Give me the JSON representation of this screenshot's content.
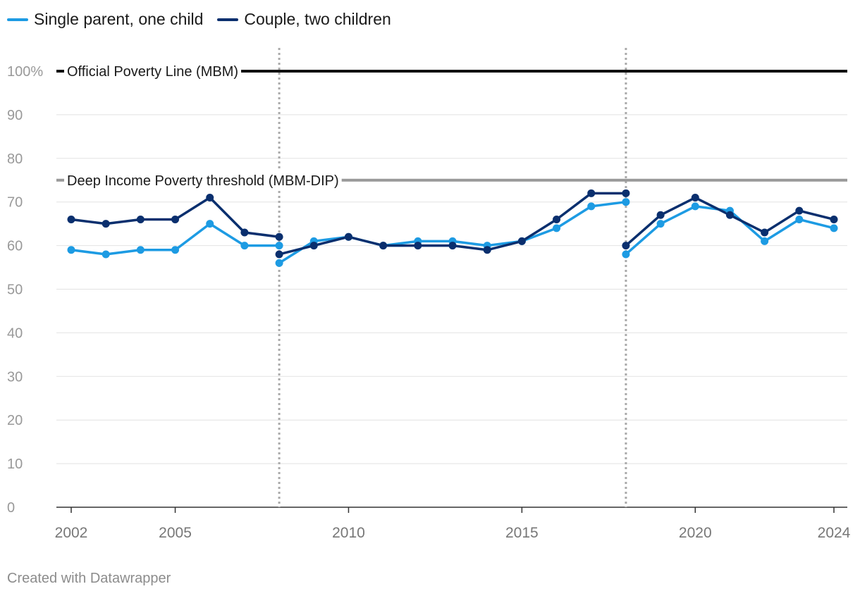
{
  "chart_data": {
    "type": "line",
    "x": [
      2002,
      2003,
      2004,
      2005,
      2006,
      2007,
      2008,
      2009,
      2010,
      2011,
      2012,
      2013,
      2014,
      2015,
      2016,
      2017,
      2018,
      2019,
      2020,
      2021,
      2022,
      2023,
      2024
    ],
    "series": [
      {
        "name": "Single parent, one child",
        "color": "#1d9be3",
        "segments": [
          {
            "x": [
              2002,
              2003,
              2004,
              2005,
              2006,
              2007,
              2008
            ],
            "y": [
              59,
              58,
              59,
              59,
              65,
              60,
              60
            ]
          },
          {
            "x": [
              2008,
              2009,
              2010,
              2011,
              2012,
              2013,
              2014,
              2015,
              2016,
              2017,
              2018
            ],
            "y": [
              56,
              61,
              62,
              60,
              61,
              61,
              60,
              61,
              64,
              69,
              70
            ]
          },
          {
            "x": [
              2018,
              2019,
              2020,
              2021,
              2022,
              2023,
              2024
            ],
            "y": [
              58,
              65,
              69,
              68,
              61,
              66,
              64
            ]
          }
        ]
      },
      {
        "name": "Couple, two children",
        "color": "#0a2f6e",
        "segments": [
          {
            "x": [
              2002,
              2003,
              2004,
              2005,
              2006,
              2007,
              2008
            ],
            "y": [
              66,
              65,
              66,
              66,
              71,
              63,
              62
            ]
          },
          {
            "x": [
              2008,
              2009,
              2010,
              2011,
              2012,
              2013,
              2014,
              2015,
              2016,
              2017,
              2018
            ],
            "y": [
              58,
              60,
              62,
              60,
              60,
              60,
              59,
              61,
              66,
              72,
              72
            ]
          },
          {
            "x": [
              2018,
              2019,
              2020,
              2021,
              2022,
              2023,
              2024
            ],
            "y": [
              60,
              67,
              71,
              67,
              63,
              68,
              66
            ]
          }
        ]
      }
    ],
    "reference_lines": [
      {
        "label": "Official Poverty Line (MBM)",
        "value": 100,
        "color": "#111111"
      },
      {
        "label": "Deep Income Poverty threshold (MBM-DIP)",
        "value": 75,
        "color": "#999999"
      }
    ],
    "vertical_markers": [
      2008,
      2018
    ],
    "ylim": [
      0,
      100
    ],
    "yticks": [
      0,
      10,
      20,
      30,
      40,
      50,
      60,
      70,
      80,
      90,
      100
    ],
    "ytick_labels": [
      "0",
      "10",
      "20",
      "30",
      "40",
      "50",
      "60",
      "70",
      "80",
      "90",
      "100%"
    ],
    "xticks": [
      2002,
      2005,
      2010,
      2015,
      2020,
      2024
    ],
    "xtick_labels": [
      "2002",
      "2005",
      "2010",
      "2015",
      "2020",
      "2024"
    ],
    "grid": true,
    "legend_position": "top-left"
  },
  "footer": "Created with Datawrapper"
}
